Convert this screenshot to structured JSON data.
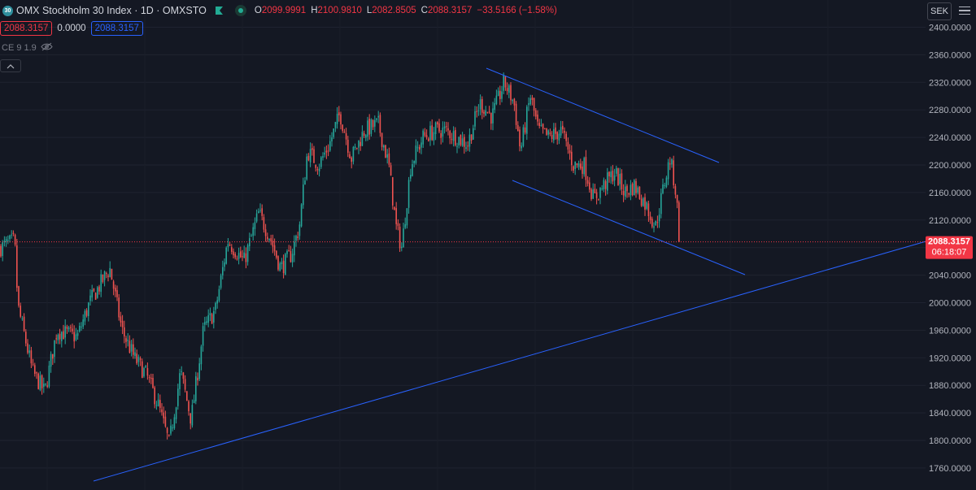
{
  "header": {
    "symbol_badge": "30",
    "title": "OMX Stockholm 30 Index · 1D · OMXSTO",
    "ohlc": [
      {
        "key": "O",
        "value": "2099.9991"
      },
      {
        "key": "H",
        "value": "2100.9810"
      },
      {
        "key": "L",
        "value": "2082.8505"
      },
      {
        "key": "C",
        "value": "2088.3157"
      }
    ],
    "change": "−33.5166 (−1.58%)"
  },
  "pills": {
    "bid": "2088.3157",
    "spread": "0.0000",
    "ask": "2088.3157"
  },
  "indicator": {
    "label": "CE 9 1.9"
  },
  "price_scale": {
    "currency": "SEK",
    "ticks": [
      "2400.0000",
      "2360.0000",
      "2320.0000",
      "2280.0000",
      "2240.0000",
      "2200.0000",
      "2160.0000",
      "2120.0000",
      "2080.0000",
      "2040.0000",
      "2000.0000",
      "1960.0000",
      "1920.0000",
      "1880.0000",
      "1840.0000",
      "1800.0000",
      "1760.0000"
    ],
    "last_price_label": "2088.3157",
    "countdown": "06:18:07"
  },
  "colors": {
    "background": "#141823",
    "up": "#26a69a",
    "down": "#ef5350",
    "trendline": "#2962ff",
    "last_price": "#f23645"
  },
  "chart_data": {
    "type": "candlestick",
    "title": "OMX Stockholm 30 Index · 1D · OMXSTO",
    "ylim": [
      1750,
      2420
    ],
    "close_path": [
      [
        0,
        2080
      ],
      [
        18,
        2090
      ],
      [
        22,
        1995
      ],
      [
        40,
        1900
      ],
      [
        55,
        1870
      ],
      [
        70,
        1960
      ],
      [
        95,
        1950
      ],
      [
        110,
        2000
      ],
      [
        125,
        2030
      ],
      [
        135,
        2050
      ],
      [
        150,
        1960
      ],
      [
        165,
        1920
      ],
      [
        180,
        1895
      ],
      [
        195,
        1850
      ],
      [
        208,
        1795
      ],
      [
        222,
        1900
      ],
      [
        235,
        1830
      ],
      [
        250,
        1960
      ],
      [
        265,
        1990
      ],
      [
        280,
        2090
      ],
      [
        300,
        2060
      ],
      [
        318,
        2130
      ],
      [
        332,
        2095
      ],
      [
        345,
        2050
      ],
      [
        358,
        2070
      ],
      [
        368,
        2110
      ],
      [
        378,
        2220
      ],
      [
        392,
        2200
      ],
      [
        405,
        2230
      ],
      [
        418,
        2275
      ],
      [
        432,
        2210
      ],
      [
        448,
        2250
      ],
      [
        465,
        2260
      ],
      [
        478,
        2200
      ],
      [
        487,
        2110
      ],
      [
        494,
        2080
      ],
      [
        505,
        2200
      ],
      [
        520,
        2240
      ],
      [
        535,
        2250
      ],
      [
        548,
        2250
      ],
      [
        562,
        2240
      ],
      [
        575,
        2230
      ],
      [
        590,
        2290
      ],
      [
        605,
        2270
      ],
      [
        620,
        2320
      ],
      [
        632,
        2290
      ],
      [
        640,
        2220
      ],
      [
        652,
        2300
      ],
      [
        662,
        2250
      ],
      [
        675,
        2240
      ],
      [
        690,
        2250
      ],
      [
        705,
        2200
      ],
      [
        718,
        2200
      ],
      [
        730,
        2150
      ],
      [
        742,
        2170
      ],
      [
        756,
        2190
      ],
      [
        768,
        2160
      ],
      [
        780,
        2170
      ],
      [
        795,
        2140
      ],
      [
        806,
        2110
      ],
      [
        817,
        2175
      ],
      [
        824,
        2210
      ],
      [
        831,
        2160
      ],
      [
        836,
        2088
      ]
    ]
  }
}
